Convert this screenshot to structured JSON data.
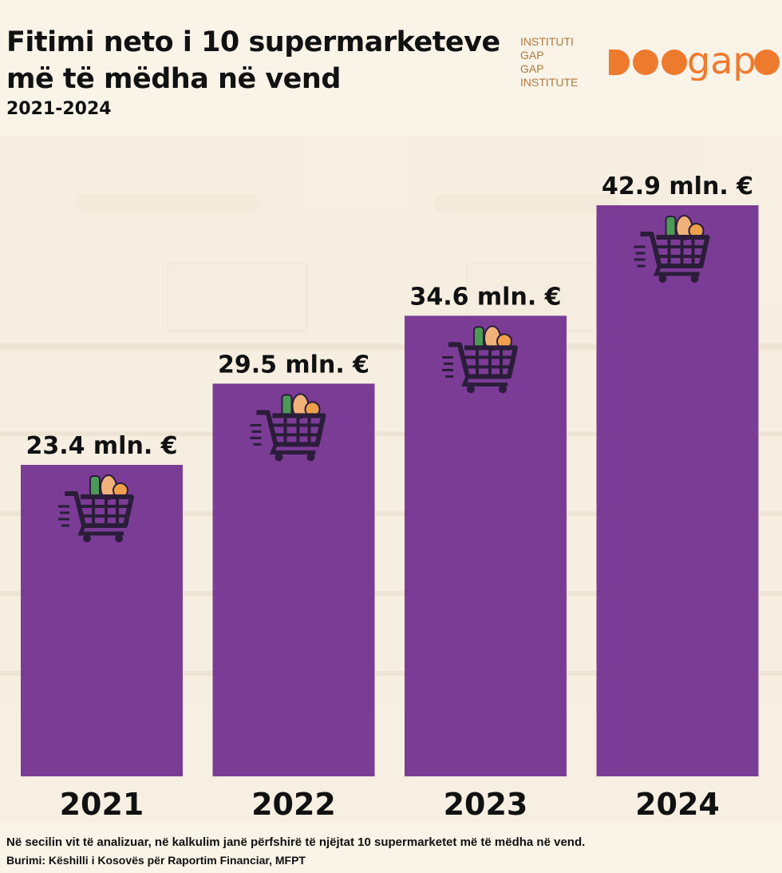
{
  "header": {
    "title_line1": "Fitimi neto i 10 supermarketeve",
    "title_line2": "më të mëdha në vend",
    "subtitle": "2021-2024"
  },
  "logo": {
    "line1": "INSTITUTI GAP",
    "line2": "GAP INSTITUTE",
    "wordmark": "gap",
    "color": "#ee7a2e"
  },
  "chart_data": {
    "type": "bar",
    "title": "Fitimi neto i 10 supermarketeve më të mëdha në vend",
    "subtitle": "2021-2024",
    "categories": [
      "2021",
      "2022",
      "2023",
      "2024"
    ],
    "values": [
      23.4,
      29.5,
      34.6,
      42.9
    ],
    "data_labels": [
      "23.4 mln. €",
      "29.5 mln. €",
      "34.6 mln. €",
      "42.9 mln. €"
    ],
    "unit": "mln. €",
    "xlabel": "",
    "ylabel": "",
    "ylim": [
      0,
      42.9
    ],
    "grid": false,
    "bar_color": "#7b3c96",
    "bar_icon": "shopping-cart-icon"
  },
  "footer": {
    "note": "Në secilin vit të analizuar, në kalkulim janë përfshirë të njëjtat 10 supermarketet më të mëdha në vend.",
    "source": "Burimi: Këshilli i Kosovës për Raportim Financiar, MFPT"
  }
}
